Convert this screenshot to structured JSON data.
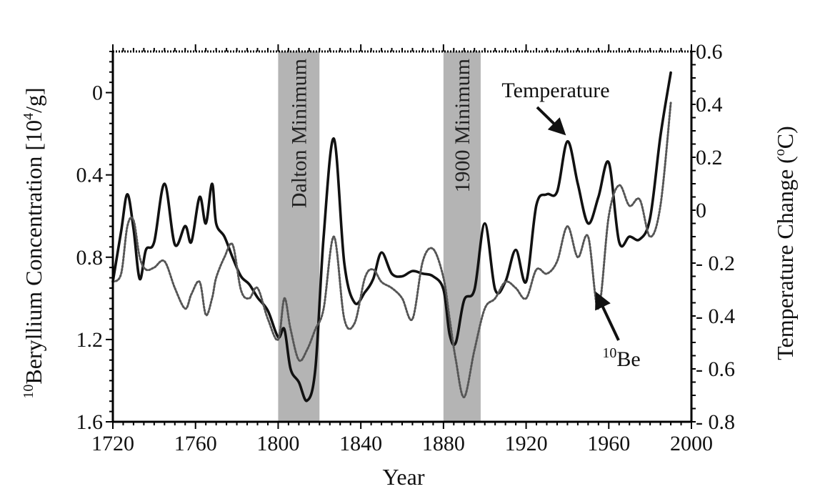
{
  "chart_data": {
    "type": "line",
    "x": [
      1720,
      1724,
      1727,
      1730,
      1733,
      1736,
      1740,
      1745,
      1750,
      1755,
      1758,
      1762,
      1765,
      1768,
      1770,
      1774,
      1778,
      1782,
      1786,
      1790,
      1795,
      1800,
      1803,
      1806,
      1810,
      1814,
      1818,
      1822,
      1827,
      1832,
      1837,
      1842,
      1846,
      1850,
      1855,
      1860,
      1865,
      1870,
      1875,
      1880,
      1883,
      1886,
      1890,
      1895,
      1900,
      1905,
      1910,
      1915,
      1920,
      1925,
      1930,
      1935,
      1940,
      1945,
      1950,
      1955,
      1960,
      1965,
      1970,
      1975,
      1980,
      1985,
      1990
    ],
    "series": [
      {
        "name": "Temperature",
        "axis": "right",
        "values": [
          -0.27,
          -0.08,
          0.06,
          -0.07,
          -0.26,
          -0.15,
          -0.12,
          0.1,
          -0.13,
          -0.06,
          -0.12,
          0.05,
          -0.05,
          0.1,
          -0.05,
          -0.1,
          -0.18,
          -0.25,
          -0.28,
          -0.33,
          -0.38,
          -0.48,
          -0.45,
          -0.6,
          -0.65,
          -0.72,
          -0.6,
          -0.1,
          0.27,
          -0.2,
          -0.35,
          -0.31,
          -0.26,
          -0.16,
          -0.24,
          -0.25,
          -0.23,
          -0.24,
          -0.25,
          -0.3,
          -0.47,
          -0.5,
          -0.34,
          -0.3,
          -0.05,
          -0.3,
          -0.27,
          -0.15,
          -0.27,
          0.02,
          0.06,
          0.07,
          0.26,
          0.1,
          -0.05,
          0.05,
          0.18,
          -0.12,
          -0.1,
          -0.11,
          -0.03,
          0.28,
          0.52
        ]
      },
      {
        "name": "10Be",
        "axis": "left",
        "values": [
          0.92,
          0.88,
          0.65,
          0.62,
          0.8,
          0.86,
          0.85,
          0.82,
          0.95,
          1.05,
          0.98,
          0.92,
          1.08,
          1.0,
          0.9,
          0.8,
          0.74,
          0.96,
          1.0,
          0.95,
          1.1,
          1.2,
          1.0,
          1.15,
          1.3,
          1.25,
          1.15,
          1.05,
          0.7,
          1.1,
          1.12,
          0.9,
          0.86,
          0.92,
          0.95,
          1.0,
          1.1,
          0.82,
          0.76,
          0.9,
          1.1,
          1.3,
          1.48,
          1.25,
          1.05,
          1.0,
          0.92,
          0.95,
          1.0,
          0.86,
          0.88,
          0.82,
          0.65,
          0.8,
          0.7,
          1.05,
          0.6,
          0.45,
          0.55,
          0.52,
          0.7,
          0.55,
          0.05
        ]
      }
    ],
    "bands": [
      {
        "label": "Dalton Minimum",
        "from": 1800,
        "to": 1820
      },
      {
        "label": "1900 Minimum",
        "from": 1880,
        "to": 1898
      }
    ],
    "xlim": [
      1720,
      2000
    ],
    "x_ticks": [
      "1720",
      "1760",
      "1800",
      "1840",
      "1880",
      "1920",
      "1960",
      "2000"
    ],
    "left_ylim": [
      -0.2,
      1.6
    ],
    "left_ticks": [
      {
        "v": 0,
        "label": "0"
      },
      {
        "v": 0.4,
        "label": "0.4"
      },
      {
        "v": 0.8,
        "label": "0.8"
      },
      {
        "v": 1.2,
        "label": "1.2"
      },
      {
        "v": 1.6,
        "label": "1.6"
      }
    ],
    "right_ylim": [
      -0.8,
      0.6
    ],
    "right_ticks": [
      {
        "v": 0.6,
        "label": "0.6"
      },
      {
        "v": 0.4,
        "label": "0.4"
      },
      {
        "v": 0.2,
        "label": "0.2"
      },
      {
        "v": 0,
        "label": "0"
      },
      {
        "v": -0.2,
        "label": "- 0.2"
      },
      {
        "v": -0.4,
        "label": "- 0.4"
      },
      {
        "v": -0.6,
        "label": "- 0.6"
      },
      {
        "v": -0.8,
        "label": "- 0.8"
      }
    ],
    "xlabel": "Year",
    "ylabel_left": "Beryllium Concentration [10",
    "ylabel_left_sup_prefix": "10",
    "ylabel_left_sup_exp": "4",
    "ylabel_left_suffix": "/g]",
    "ylabel_right": "Temperature Change (",
    "ylabel_right_sup": "o",
    "ylabel_right_suffix": "C)",
    "annotations": [
      {
        "label": "Temperature",
        "target_year": 1938,
        "target_value": 0.26
      },
      {
        "label_sup": "10",
        "label": "Be",
        "target_year": 1952,
        "target_value": 0.95
      }
    ],
    "colors": {
      "band": "#b4b4b4",
      "line": "#111111",
      "axis": "#000000"
    }
  }
}
